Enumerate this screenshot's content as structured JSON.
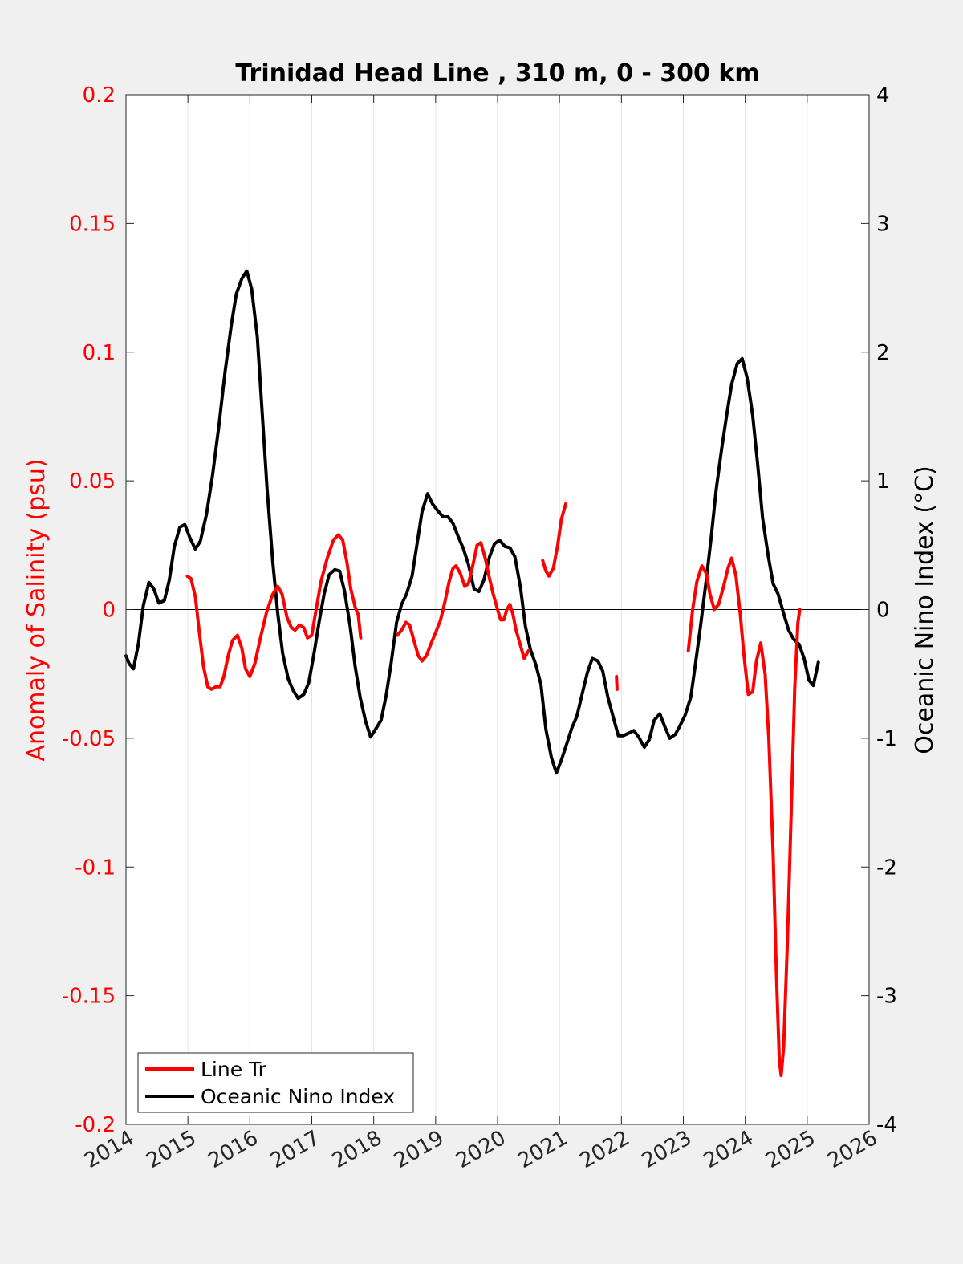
{
  "chart_data": {
    "type": "line",
    "title": "Trinidad Head Line , 310 m, 0 - 300 km",
    "ylabel_left": "Anomaly of Salinity (psu)",
    "ylabel_right": "Oceanic Nino Index (°C)",
    "xlim": [
      2014,
      2026
    ],
    "ylim_left": [
      -0.2,
      0.2
    ],
    "ylim_right": [
      -4,
      4
    ],
    "xticks": [
      "2014",
      "2015",
      "2016",
      "2017",
      "2018",
      "2019",
      "2020",
      "2021",
      "2022",
      "2023",
      "2024",
      "2025",
      "2026"
    ],
    "yticks_left": [
      "0.2",
      "0.15",
      "0.1",
      "0.05",
      "0",
      "-0.05",
      "-0.1",
      "-0.15",
      "-0.2"
    ],
    "yticks_right": [
      "4",
      "3",
      "2",
      "1",
      "0",
      "-1",
      "-2",
      "-3",
      "-4"
    ],
    "grid": "vertical",
    "legend_position": "bottom-left",
    "colors": {
      "salinity": "#ff0000",
      "oni": "#000000",
      "left_axis": "#ff0000",
      "right_axis": "#000000",
      "plot_bg": "#ffffff",
      "figure_bg": "#f0f0f0",
      "grid": "#e3e3e3"
    },
    "series": [
      {
        "name": "Line Tr",
        "axis": "left",
        "color": "#ff0000",
        "segments": [
          [
            [
              2014.99,
              0.013
            ],
            [
              2015.05,
              0.012
            ],
            [
              2015.12,
              0.005
            ],
            [
              2015.18,
              -0.008
            ],
            [
              2015.25,
              -0.022
            ],
            [
              2015.32,
              -0.03
            ],
            [
              2015.38,
              -0.031
            ],
            [
              2015.45,
              -0.03
            ],
            [
              2015.52,
              -0.03
            ],
            [
              2015.58,
              -0.026
            ],
            [
              2015.65,
              -0.018
            ],
            [
              2015.72,
              -0.012
            ],
            [
              2015.8,
              -0.01
            ],
            [
              2015.87,
              -0.015
            ],
            [
              2015.93,
              -0.023
            ],
            [
              2016.0,
              -0.026
            ],
            [
              2016.08,
              -0.021
            ],
            [
              2016.17,
              -0.011
            ],
            [
              2016.27,
              -0.001
            ],
            [
              2016.37,
              0.006
            ],
            [
              2016.45,
              0.009
            ],
            [
              2016.52,
              0.006
            ],
            [
              2016.6,
              -0.003
            ],
            [
              2016.67,
              -0.007
            ],
            [
              2016.73,
              -0.008
            ],
            [
              2016.8,
              -0.006
            ],
            [
              2016.87,
              -0.007
            ],
            [
              2016.93,
              -0.011
            ],
            [
              2017.0,
              -0.01
            ],
            [
              2017.07,
              0.0
            ],
            [
              2017.15,
              0.011
            ],
            [
              2017.25,
              0.02
            ],
            [
              2017.35,
              0.027
            ],
            [
              2017.43,
              0.029
            ],
            [
              2017.5,
              0.027
            ],
            [
              2017.57,
              0.018
            ],
            [
              2017.63,
              0.008
            ],
            [
              2017.7,
              0.001
            ],
            [
              2017.75,
              -0.002
            ],
            [
              2017.79,
              -0.011
            ]
          ],
          [
            [
              2018.38,
              -0.01
            ],
            [
              2018.45,
              -0.008
            ],
            [
              2018.52,
              -0.005
            ],
            [
              2018.58,
              -0.006
            ],
            [
              2018.65,
              -0.012
            ],
            [
              2018.72,
              -0.018
            ],
            [
              2018.78,
              -0.02
            ],
            [
              2018.85,
              -0.018
            ],
            [
              2018.93,
              -0.013
            ],
            [
              2019.0,
              -0.009
            ],
            [
              2019.08,
              -0.004
            ],
            [
              2019.15,
              0.003
            ],
            [
              2019.22,
              0.011
            ],
            [
              2019.28,
              0.016
            ],
            [
              2019.33,
              0.017
            ],
            [
              2019.4,
              0.014
            ],
            [
              2019.47,
              0.009
            ],
            [
              2019.53,
              0.01
            ],
            [
              2019.6,
              0.017
            ],
            [
              2019.67,
              0.025
            ],
            [
              2019.73,
              0.026
            ],
            [
              2019.8,
              0.02
            ],
            [
              2019.87,
              0.012
            ],
            [
              2019.93,
              0.006
            ],
            [
              2020.0,
              0.0
            ],
            [
              2020.05,
              -0.004
            ],
            [
              2020.1,
              -0.004
            ],
            [
              2020.15,
              0.0
            ],
            [
              2020.2,
              0.002
            ],
            [
              2020.25,
              -0.002
            ],
            [
              2020.3,
              -0.008
            ],
            [
              2020.37,
              -0.014
            ],
            [
              2020.43,
              -0.019
            ],
            [
              2020.5,
              -0.016
            ]
          ],
          [
            [
              2020.73,
              0.019
            ],
            [
              2020.78,
              0.015
            ],
            [
              2020.83,
              0.013
            ],
            [
              2020.9,
              0.016
            ],
            [
              2020.97,
              0.025
            ],
            [
              2021.03,
              0.035
            ],
            [
              2021.1,
              0.041
            ]
          ],
          [
            [
              2021.92,
              -0.026
            ],
            [
              2021.93,
              -0.031
            ]
          ],
          [
            [
              2023.08,
              -0.016
            ],
            [
              2023.15,
              0.0
            ],
            [
              2023.22,
              0.011
            ],
            [
              2023.3,
              0.017
            ],
            [
              2023.37,
              0.014
            ],
            [
              2023.43,
              0.006
            ],
            [
              2023.5,
              0.0
            ],
            [
              2023.57,
              0.002
            ],
            [
              2023.65,
              0.009
            ],
            [
              2023.72,
              0.016
            ],
            [
              2023.78,
              0.02
            ],
            [
              2023.85,
              0.013
            ],
            [
              2023.92,
              -0.002
            ],
            [
              2023.98,
              -0.018
            ],
            [
              2024.05,
              -0.033
            ],
            [
              2024.12,
              -0.032
            ],
            [
              2024.18,
              -0.02
            ],
            [
              2024.25,
              -0.013
            ],
            [
              2024.32,
              -0.025
            ],
            [
              2024.38,
              -0.05
            ],
            [
              2024.45,
              -0.095
            ],
            [
              2024.5,
              -0.14
            ],
            [
              2024.55,
              -0.175
            ],
            [
              2024.58,
              -0.181
            ],
            [
              2024.62,
              -0.17
            ],
            [
              2024.68,
              -0.13
            ],
            [
              2024.74,
              -0.08
            ],
            [
              2024.8,
              -0.03
            ],
            [
              2024.85,
              -0.005
            ],
            [
              2024.88,
              0.0
            ]
          ]
        ]
      },
      {
        "name": "Oceanic Nino Index",
        "axis": "right",
        "color": "#000000",
        "segments": [
          [
            [
              2014.0,
              -0.36
            ],
            [
              2014.05,
              -0.42
            ],
            [
              2014.12,
              -0.46
            ],
            [
              2014.2,
              -0.27
            ],
            [
              2014.28,
              0.03
            ],
            [
              2014.37,
              0.21
            ],
            [
              2014.45,
              0.16
            ],
            [
              2014.53,
              0.05
            ],
            [
              2014.62,
              0.07
            ],
            [
              2014.7,
              0.23
            ],
            [
              2014.78,
              0.49
            ],
            [
              2014.87,
              0.64
            ],
            [
              2014.95,
              0.66
            ],
            [
              2015.03,
              0.56
            ],
            [
              2015.12,
              0.47
            ],
            [
              2015.2,
              0.53
            ],
            [
              2015.3,
              0.74
            ],
            [
              2015.4,
              1.05
            ],
            [
              2015.5,
              1.43
            ],
            [
              2015.6,
              1.85
            ],
            [
              2015.7,
              2.21
            ],
            [
              2015.78,
              2.45
            ],
            [
              2015.87,
              2.57
            ],
            [
              2015.95,
              2.63
            ],
            [
              2016.03,
              2.49
            ],
            [
              2016.12,
              2.12
            ],
            [
              2016.2,
              1.52
            ],
            [
              2016.28,
              0.93
            ],
            [
              2016.37,
              0.37
            ],
            [
              2016.45,
              -0.03
            ],
            [
              2016.53,
              -0.34
            ],
            [
              2016.62,
              -0.54
            ],
            [
              2016.7,
              -0.63
            ],
            [
              2016.78,
              -0.69
            ],
            [
              2016.87,
              -0.66
            ],
            [
              2016.95,
              -0.57
            ],
            [
              2017.03,
              -0.36
            ],
            [
              2017.12,
              -0.09
            ],
            [
              2017.2,
              0.12
            ],
            [
              2017.28,
              0.27
            ],
            [
              2017.37,
              0.31
            ],
            [
              2017.45,
              0.3
            ],
            [
              2017.53,
              0.14
            ],
            [
              2017.62,
              -0.13
            ],
            [
              2017.7,
              -0.44
            ],
            [
              2017.78,
              -0.68
            ],
            [
              2017.87,
              -0.87
            ],
            [
              2017.95,
              -0.99
            ],
            [
              2018.03,
              -0.93
            ],
            [
              2018.12,
              -0.86
            ],
            [
              2018.2,
              -0.67
            ],
            [
              2018.28,
              -0.42
            ],
            [
              2018.37,
              -0.1
            ],
            [
              2018.45,
              0.04
            ],
            [
              2018.53,
              0.12
            ],
            [
              2018.62,
              0.26
            ],
            [
              2018.7,
              0.51
            ],
            [
              2018.78,
              0.76
            ],
            [
              2018.87,
              0.9
            ],
            [
              2018.95,
              0.82
            ],
            [
              2019.03,
              0.77
            ],
            [
              2019.12,
              0.72
            ],
            [
              2019.2,
              0.72
            ],
            [
              2019.28,
              0.67
            ],
            [
              2019.37,
              0.56
            ],
            [
              2019.45,
              0.47
            ],
            [
              2019.53,
              0.35
            ],
            [
              2019.62,
              0.16
            ],
            [
              2019.7,
              0.14
            ],
            [
              2019.78,
              0.23
            ],
            [
              2019.87,
              0.41
            ],
            [
              2019.95,
              0.51
            ],
            [
              2020.03,
              0.54
            ],
            [
              2020.12,
              0.49
            ],
            [
              2020.2,
              0.48
            ],
            [
              2020.28,
              0.41
            ],
            [
              2020.37,
              0.17
            ],
            [
              2020.45,
              -0.13
            ],
            [
              2020.53,
              -0.31
            ],
            [
              2020.62,
              -0.43
            ],
            [
              2020.7,
              -0.58
            ],
            [
              2020.78,
              -0.93
            ],
            [
              2020.87,
              -1.15
            ],
            [
              2020.95,
              -1.27
            ],
            [
              2021.03,
              -1.17
            ],
            [
              2021.12,
              -1.04
            ],
            [
              2021.2,
              -0.92
            ],
            [
              2021.28,
              -0.83
            ],
            [
              2021.37,
              -0.65
            ],
            [
              2021.45,
              -0.49
            ],
            [
              2021.53,
              -0.38
            ],
            [
              2021.62,
              -0.4
            ],
            [
              2021.7,
              -0.48
            ],
            [
              2021.78,
              -0.68
            ],
            [
              2021.87,
              -0.84
            ],
            [
              2021.95,
              -0.98
            ],
            [
              2022.03,
              -0.98
            ],
            [
              2022.12,
              -0.96
            ],
            [
              2022.2,
              -0.94
            ],
            [
              2022.28,
              -0.99
            ],
            [
              2022.37,
              -1.07
            ],
            [
              2022.45,
              -1.01
            ],
            [
              2022.53,
              -0.86
            ],
            [
              2022.62,
              -0.81
            ],
            [
              2022.7,
              -0.91
            ],
            [
              2022.78,
              -1.0
            ],
            [
              2022.87,
              -0.97
            ],
            [
              2022.95,
              -0.9
            ],
            [
              2023.03,
              -0.82
            ],
            [
              2023.12,
              -0.68
            ],
            [
              2023.2,
              -0.41
            ],
            [
              2023.28,
              -0.12
            ],
            [
              2023.37,
              0.23
            ],
            [
              2023.45,
              0.56
            ],
            [
              2023.53,
              0.93
            ],
            [
              2023.62,
              1.25
            ],
            [
              2023.7,
              1.51
            ],
            [
              2023.78,
              1.75
            ],
            [
              2023.87,
              1.91
            ],
            [
              2023.95,
              1.95
            ],
            [
              2024.03,
              1.8
            ],
            [
              2024.12,
              1.51
            ],
            [
              2024.2,
              1.13
            ],
            [
              2024.28,
              0.71
            ],
            [
              2024.37,
              0.42
            ],
            [
              2024.45,
              0.2
            ],
            [
              2024.53,
              0.12
            ],
            [
              2024.62,
              -0.03
            ],
            [
              2024.7,
              -0.16
            ],
            [
              2024.78,
              -0.23
            ],
            [
              2024.87,
              -0.27
            ],
            [
              2024.95,
              -0.38
            ],
            [
              2025.03,
              -0.55
            ],
            [
              2025.1,
              -0.59
            ],
            [
              2025.18,
              -0.41
            ]
          ]
        ]
      }
    ]
  }
}
